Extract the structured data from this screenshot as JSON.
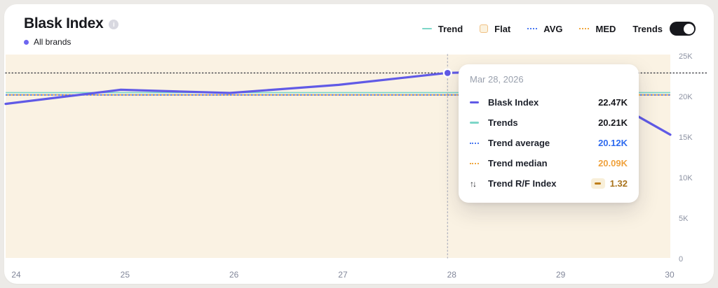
{
  "header": {
    "title": "Blask Index",
    "subtitle": "All brands",
    "subtitle_dot_color": "#6d66f0",
    "info_glyph": "i"
  },
  "legend": {
    "items": [
      {
        "label": "Trend",
        "icon": "solid-line",
        "color": "#7dd6c8"
      },
      {
        "label": "Flat",
        "icon": "square",
        "fill": "#fbf2df",
        "border": "#f0c083"
      },
      {
        "label": "AVG",
        "icon": "dotted-line",
        "color": "#4a79f2"
      },
      {
        "label": "MED",
        "icon": "dotted-line",
        "color": "#f0a73e"
      }
    ],
    "toggle_label": "Trends",
    "toggle_on": true
  },
  "tooltip": {
    "date": "Mar 28, 2026",
    "rows": [
      {
        "label": "Blask Index",
        "value": "22.47K",
        "icon": "solid-line",
        "color": "#605ae6",
        "value_color": "#17181d"
      },
      {
        "label": "Trends",
        "value": "20.21K",
        "icon": "solid-line",
        "color": "#7dd6c8",
        "value_color": "#17181d"
      },
      {
        "label": "Trend average",
        "value": "20.12K",
        "icon": "dotted-line",
        "color": "#4a79f2",
        "value_color": "#2e6bf0"
      },
      {
        "label": "Trend median",
        "value": "20.09K",
        "icon": "dotted-line",
        "color": "#f0a73e",
        "value_color": "#f0a23c"
      },
      {
        "label": "Trend R/F Index",
        "value": "1.32",
        "icon": "arrows",
        "glyph": "↑↓",
        "value_color": "#a9731c",
        "chip": true
      }
    ]
  },
  "chart_data": {
    "type": "line",
    "title": "Blask Index",
    "plot_bg": "#faf2e3",
    "xlim": [
      24,
      30
    ],
    "ylim": [
      0,
      25000
    ],
    "x_ticks": [
      24,
      25,
      26,
      27,
      28,
      29,
      30
    ],
    "y_ticks": [
      {
        "label": "25K",
        "value": 25000
      },
      {
        "label": "20K",
        "value": 20000
      },
      {
        "label": "15K",
        "value": 15000
      },
      {
        "label": "10K",
        "value": 10000
      },
      {
        "label": "5K",
        "value": 5000
      },
      {
        "label": "0",
        "value": 0
      }
    ],
    "series": [
      {
        "name": "Blask Index",
        "type": "line",
        "color": "#605ae6",
        "points": [
          [
            24,
            18750
          ],
          [
            25,
            20400
          ],
          [
            26,
            20000
          ],
          [
            27,
            21000
          ],
          [
            28,
            22470
          ],
          [
            29,
            22800
          ],
          [
            30,
            15200
          ]
        ]
      },
      {
        "name": "Trends",
        "type": "hline",
        "style": "solid",
        "color": "#7dd6c8",
        "value": 20210
      },
      {
        "name": "Trend average",
        "type": "hline",
        "style": "dotted",
        "color": "#4a79f2",
        "value": 20120
      },
      {
        "name": "Trend median",
        "type": "hline",
        "style": "dotted",
        "color": "#f0a73e",
        "value": 20090
      }
    ],
    "hover": {
      "day": 28,
      "date": "Mar 28, 2026",
      "value": 22470,
      "guide_color": "#46474d",
      "cursor_color": "#b7b8c2"
    }
  }
}
